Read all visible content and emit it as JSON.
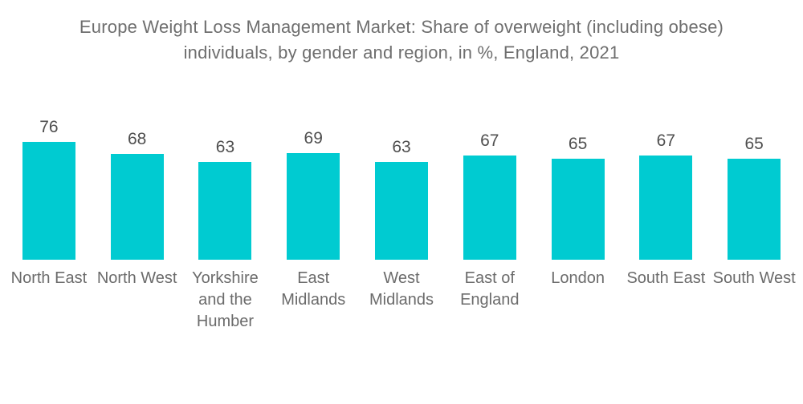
{
  "chart": {
    "title": "Europe Weight Loss Management Market: Share of overweight (including obese)\nindividuals, by gender and region, in %, England, 2021"
  },
  "chart_data": {
    "type": "bar",
    "title": "Europe Weight Loss Management Market: Share of overweight (including obese) individuals, by gender and region, in %, England, 2021",
    "categories": [
      "North East",
      "North West",
      "Yorkshire and the Humber",
      "East Midlands",
      "West Midlands",
      "East of England",
      "London",
      "South East",
      "South West"
    ],
    "values": [
      76,
      68,
      63,
      69,
      63,
      67,
      65,
      67,
      65
    ],
    "unit": "%",
    "xlabel": "",
    "ylabel": "",
    "ylim": [
      0,
      80
    ],
    "grid": false,
    "legend": false,
    "value_labels_shown": true,
    "axes_shown": false,
    "bar_color": "#00CBD1"
  },
  "display": {
    "category_labels": [
      "North East",
      "North West",
      "Yorkshire\nand the\nHumber",
      "East\nMidlands",
      "West\nMidlands",
      "East of\nEngland",
      "London",
      "South East",
      "South West"
    ]
  },
  "colors": {
    "background": "#ffffff",
    "bar": "#00CBD1",
    "title_text": "#6e6e6e",
    "value_text": "#4f4f4f",
    "category_text": "#6b6b6b"
  }
}
